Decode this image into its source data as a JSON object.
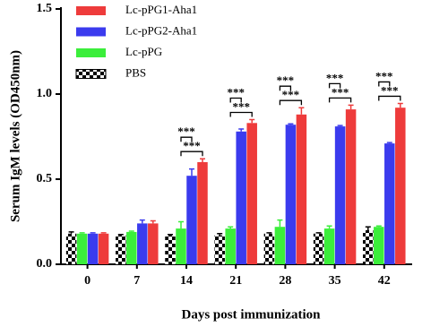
{
  "chart_data": {
    "type": "bar",
    "y_label": "Serum IgM levels (OD450nm)",
    "x_label": "Days post immunization",
    "categories": [
      "0",
      "7",
      "14",
      "21",
      "28",
      "35",
      "42"
    ],
    "series": [
      {
        "name": "Lc-pPG1-Aha1",
        "color": "#ee3b3b",
        "values": [
          0.18,
          0.24,
          0.6,
          0.83,
          0.88,
          0.91,
          0.92
        ],
        "errors": [
          0.005,
          0.015,
          0.02,
          0.02,
          0.04,
          0.025,
          0.025
        ]
      },
      {
        "name": "Lc-pPG2-Aha1",
        "color": "#3b3bee",
        "values": [
          0.18,
          0.24,
          0.52,
          0.78,
          0.82,
          0.81,
          0.71
        ],
        "errors": [
          0.005,
          0.02,
          0.04,
          0.015,
          0.005,
          0.005,
          0.005
        ]
      },
      {
        "name": "Lc-pPG",
        "color": "#3bee3b",
        "values": [
          0.18,
          0.19,
          0.21,
          0.21,
          0.22,
          0.21,
          0.22
        ],
        "errors": [
          0.005,
          0.005,
          0.04,
          0.01,
          0.04,
          0.015,
          0.005
        ]
      },
      {
        "name": "PBS",
        "color": "#000000",
        "pattern": "checker",
        "values": [
          0.18,
          0.17,
          0.17,
          0.17,
          0.18,
          0.18,
          0.2
        ],
        "errors": [
          0.01,
          0.005,
          0.005,
          0.01,
          0.005,
          0.005,
          0.02
        ]
      }
    ],
    "significance": [
      null,
      null,
      [
        "***",
        "***"
      ],
      [
        "***",
        "***"
      ],
      [
        "***",
        "***"
      ],
      [
        "***",
        "***"
      ],
      [
        "***",
        "***"
      ]
    ],
    "ylim": [
      0,
      1.5
    ],
    "yticks": [
      {
        "value": 0,
        "label": "0.0"
      },
      {
        "value": 0.5,
        "label": "0.5"
      },
      {
        "value": 1,
        "label": "1.0"
      },
      {
        "value": 1.5,
        "label": "1.5"
      }
    ],
    "legend": "upper left"
  }
}
